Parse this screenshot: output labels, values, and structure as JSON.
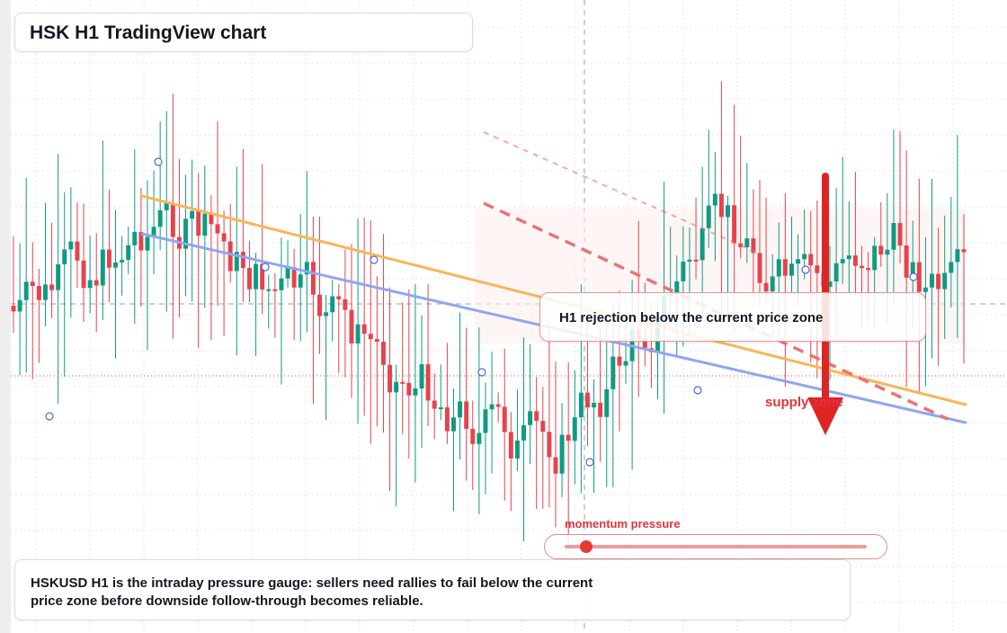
{
  "title": "HSK H1 TradingView chart",
  "callout": "H1 rejection below the current price zone",
  "zone_label": "supply zone",
  "gauge": {
    "label": "momentum pressure",
    "level": 0.07
  },
  "note": "HSKUSD H1 is the intraday pressure gauge: sellers need rallies to fail below the current price zone before downside follow-through becomes reliable.",
  "colors": {
    "up": "#0f9b83",
    "down": "#e5434d",
    "trend_orange": "#f7b65a",
    "trend_blue": "#8fa6f0",
    "arrow": "#e02424",
    "dashed_projection": "#e97474"
  },
  "chart_data": {
    "type": "candlestick",
    "symbol": "HSKUSD",
    "timeframe": "H1",
    "candle_count": 150,
    "trendlines": [
      "descending resistance",
      "descending support"
    ],
    "marker": "bearish arrow at supply zone",
    "grid": true
  }
}
